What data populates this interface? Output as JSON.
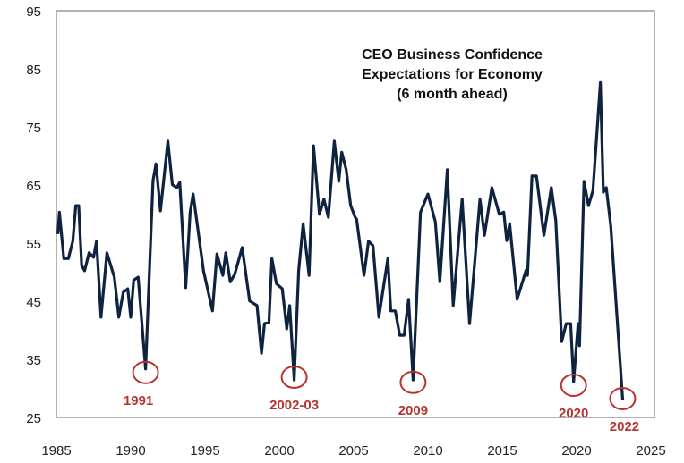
{
  "chart_data": {
    "type": "line",
    "title": [
      "CEO Business Confidence",
      "Expectations for Economy",
      "(6 month ahead)"
    ],
    "xlabel": "",
    "ylabel": "",
    "xlim": [
      1985,
      2025
    ],
    "ylim": [
      25,
      95
    ],
    "xticks": [
      1985,
      1990,
      1995,
      2000,
      2005,
      2010,
      2015,
      2020,
      2025
    ],
    "yticks": [
      25,
      35,
      45,
      55,
      65,
      75,
      85,
      95
    ],
    "grid": false,
    "legend": "none",
    "colors": {
      "line": "#0f2340",
      "annotation": "#b8332f",
      "axis": "#9a9a9a"
    },
    "series": [
      {
        "x": [
          1985.1,
          1985.2,
          1985.5,
          1985.8,
          1986.1,
          1986.3,
          1986.5,
          1986.7,
          1986.9,
          1987.2,
          1987.5,
          1987.7,
          1988.0,
          1988.4,
          1988.9,
          1989.2,
          1989.5,
          1989.8,
          1990.0,
          1990.2,
          1990.5,
          1991.0,
          1991.5,
          1991.7,
          1992.0,
          1992.5,
          1992.8,
          1993.1,
          1993.3,
          1993.7,
          1994.0,
          1994.2,
          1994.9,
          1995.5,
          1995.8,
          1996.2,
          1996.4,
          1996.7,
          1997.0,
          1997.5,
          1998.0,
          1998.5,
          1998.8,
          1999.0,
          1999.3,
          1999.5,
          1999.8,
          2000.2,
          2000.5,
          2000.7,
          2001.0,
          2001.3,
          2001.6,
          2002.0,
          2002.3,
          2002.7,
          2003.0,
          2003.3,
          2003.7,
          2004.0,
          2004.2,
          2004.5,
          2004.8,
          2005.1,
          2005.2,
          2005.7,
          2006.0,
          2006.3,
          2006.7,
          2007.3,
          2007.5,
          2007.8,
          2008.1,
          2008.4,
          2008.7,
          2009.0,
          2009.5,
          2010.0,
          2010.5,
          2010.8,
          2011.3,
          2011.7,
          2012.3,
          2012.8,
          2013.5,
          2013.8,
          2014.3,
          2014.8,
          2015.1,
          2015.3,
          2015.5,
          2016.0,
          2016.6,
          2016.7,
          2017.0,
          2017.3,
          2017.8,
          2018.3,
          2018.6,
          2019.0,
          2019.3,
          2019.6,
          2019.8,
          2020.1,
          2020.2,
          2020.5,
          2020.8,
          2021.1,
          2021.6,
          2021.8,
          2022.0,
          2022.3,
          2023.1
        ],
        "y": [
          56.7,
          60.5,
          52.5,
          52.5,
          55.5,
          61.6,
          61.6,
          51.3,
          50.4,
          53.5,
          52.7,
          55.5,
          42.4,
          53.5,
          49.3,
          42.4,
          46.7,
          47.3,
          42.4,
          48.8,
          49.3,
          33.5,
          65.9,
          68.8,
          60.7,
          72.7,
          65.2,
          64.7,
          65.6,
          47.5,
          60.5,
          63.6,
          50.4,
          43.5,
          53.3,
          49.6,
          53.5,
          48.5,
          49.8,
          54.4,
          45.2,
          44.4,
          36.2,
          41.3,
          41.5,
          52.5,
          48.2,
          47.3,
          40.4,
          44.4,
          31.6,
          50.4,
          58.5,
          49.6,
          71.9,
          60.1,
          62.7,
          59.6,
          72.7,
          65.8,
          70.8,
          67.8,
          61.6,
          59.6,
          59.3,
          49.6,
          55.5,
          54.7,
          42.4,
          52.5,
          43.5,
          43.5,
          39.3,
          39.3,
          45.5,
          31.6,
          60.5,
          63.6,
          58.8,
          48.5,
          67.8,
          44.4,
          62.7,
          41.3,
          62.7,
          56.5,
          64.7,
          60.1,
          60.5,
          55.6,
          58.5,
          45.5,
          50.5,
          49.6,
          66.7,
          66.7,
          56.5,
          64.7,
          59.0,
          38.2,
          41.3,
          41.3,
          31.3,
          41.3,
          37.5,
          65.8,
          61.6,
          64.2,
          82.8,
          63.9,
          64.7,
          58.1,
          28.2
        ]
      }
    ],
    "annotations": [
      {
        "text": "1991",
        "x": 1991.0,
        "y": 33.5
      },
      {
        "text": "2002-03",
        "x": 2001.0,
        "y": 32.7
      },
      {
        "text": "2009",
        "x": 2009.0,
        "y": 31.8
      },
      {
        "text": "2020",
        "x": 2019.8,
        "y": 31.3
      },
      {
        "text": "2022",
        "x": 2023.1,
        "y": 29.0
      }
    ]
  }
}
